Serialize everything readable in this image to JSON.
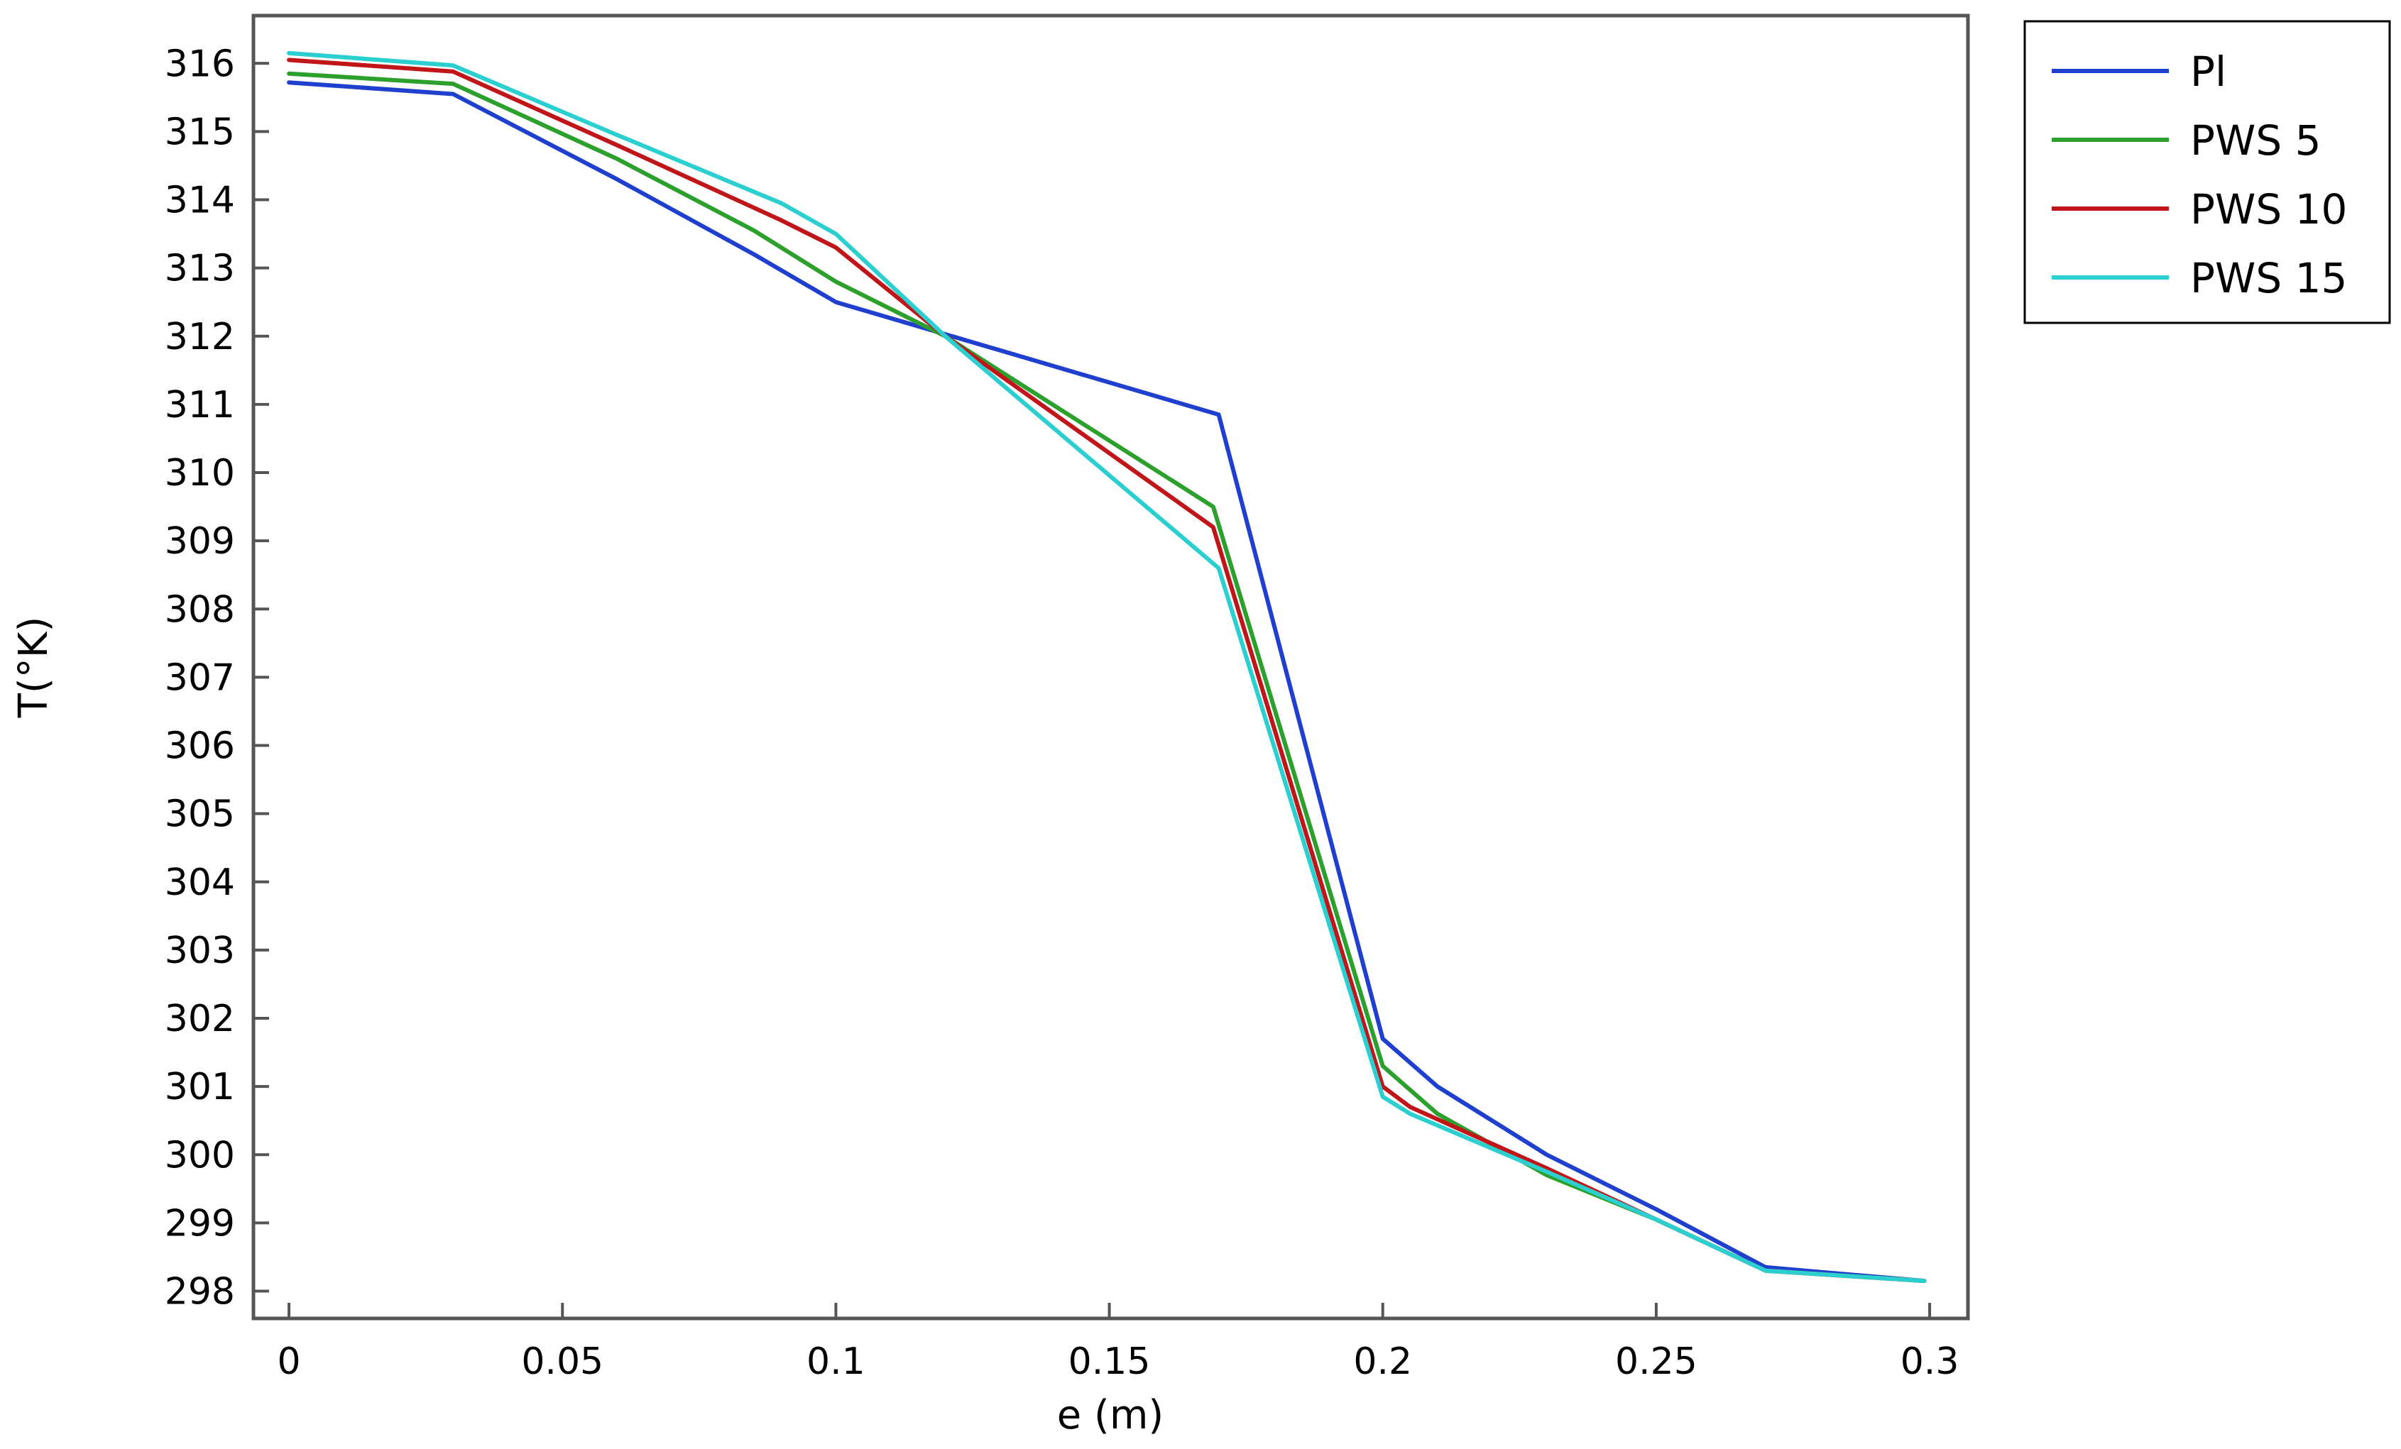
{
  "chart_data": {
    "type": "line",
    "title": "",
    "xlabel": "e (m)",
    "ylabel": "T(°K)",
    "xlim": [
      -0.0065,
      0.307
    ],
    "ylim": [
      297.6,
      316.7
    ],
    "x_ticks": [
      0,
      0.05,
      0.1,
      0.15,
      0.2,
      0.25,
      0.3
    ],
    "x_tick_labels": [
      "0",
      "0.05",
      "0.1",
      "0.15",
      "0.2",
      "0.25",
      "0.3"
    ],
    "y_ticks": [
      298,
      299,
      300,
      301,
      302,
      303,
      304,
      305,
      306,
      307,
      308,
      309,
      310,
      311,
      312,
      313,
      314,
      315,
      316
    ],
    "y_tick_labels": [
      "298",
      "299",
      "300",
      "301",
      "302",
      "303",
      "304",
      "305",
      "306",
      "307",
      "308",
      "309",
      "310",
      "311",
      "312",
      "313",
      "314",
      "315",
      "316"
    ],
    "grid": false,
    "legend_position": "outside-top-right",
    "series": [
      {
        "name": "Pl",
        "color": "#1f3fcf",
        "x": [
          0,
          0.03,
          0.06,
          0.085,
          0.1,
          0.17,
          0.2,
          0.21,
          0.23,
          0.25,
          0.27,
          0.299
        ],
        "y": [
          315.72,
          315.55,
          314.3,
          313.2,
          312.5,
          310.85,
          301.7,
          301.0,
          300.0,
          299.2,
          298.35,
          298.15
        ]
      },
      {
        "name": "PWS 5",
        "color": "#2ca02c",
        "x": [
          0,
          0.03,
          0.06,
          0.085,
          0.1,
          0.12,
          0.169,
          0.2,
          0.21,
          0.23,
          0.25,
          0.27,
          0.299
        ],
        "y": [
          315.85,
          315.7,
          314.6,
          313.55,
          312.8,
          312.0,
          309.5,
          301.3,
          300.6,
          299.7,
          299.05,
          298.3,
          298.15
        ]
      },
      {
        "name": "PWS 10",
        "color": "#c0161a",
        "x": [
          0,
          0.03,
          0.06,
          0.09,
          0.1,
          0.12,
          0.169,
          0.2,
          0.205,
          0.23,
          0.25,
          0.27,
          0.299
        ],
        "y": [
          316.05,
          315.88,
          314.8,
          313.7,
          313.3,
          312.0,
          309.2,
          301.0,
          300.7,
          299.8,
          299.05,
          298.3,
          298.15
        ]
      },
      {
        "name": "PWS 15",
        "color": "#2ccfcf",
        "x": [
          0,
          0.03,
          0.06,
          0.09,
          0.1,
          0.12,
          0.17,
          0.2,
          0.205,
          0.23,
          0.25,
          0.27,
          0.299
        ],
        "y": [
          316.15,
          315.97,
          314.95,
          313.95,
          313.5,
          312.0,
          308.6,
          300.85,
          300.6,
          299.75,
          299.05,
          298.3,
          298.15
        ]
      }
    ]
  }
}
